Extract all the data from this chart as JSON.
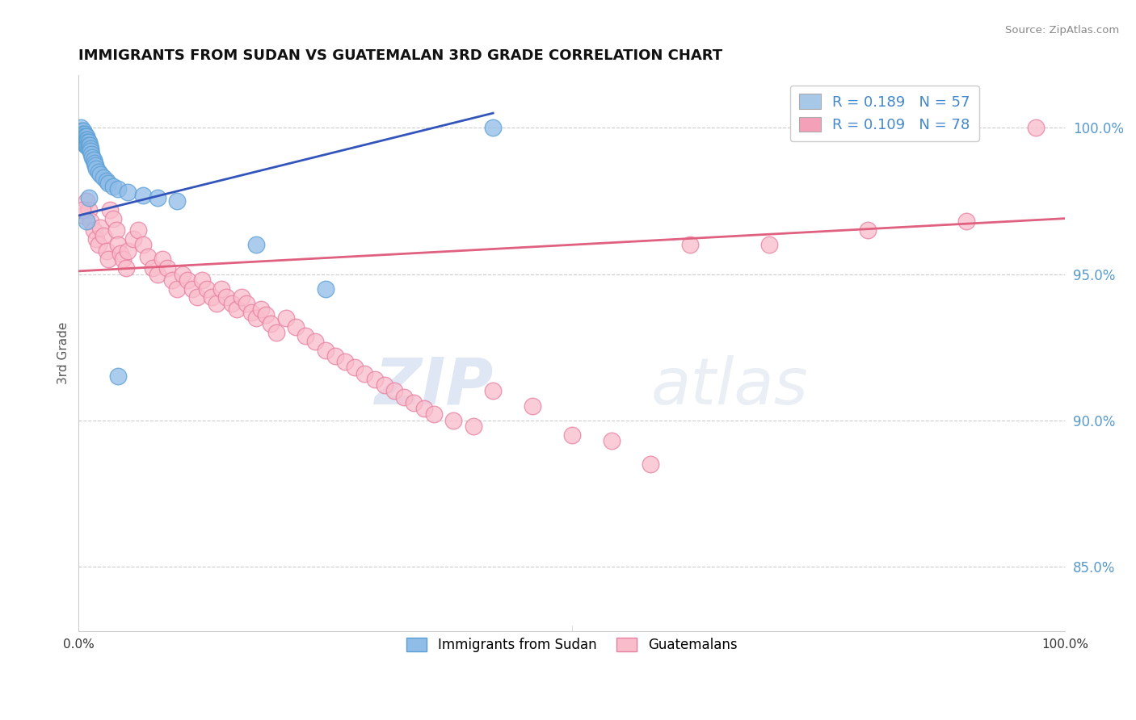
{
  "title": "IMMIGRANTS FROM SUDAN VS GUATEMALAN 3RD GRADE CORRELATION CHART",
  "source_text": "Source: ZipAtlas.com",
  "ylabel": "3rd Grade",
  "ytick_labels": [
    "85.0%",
    "90.0%",
    "95.0%",
    "100.0%"
  ],
  "ytick_values": [
    0.85,
    0.9,
    0.95,
    1.0
  ],
  "xlim": [
    0.0,
    1.0
  ],
  "ylim": [
    0.828,
    1.018
  ],
  "legend_r1": "R = 0.189   N = 57",
  "legend_r2": "R = 0.109   N = 78",
  "legend_color1": "#a8c8e8",
  "legend_color2": "#f4a0b8",
  "watermark_zip": "ZIP",
  "watermark_atlas": "atlas",
  "sudan_color": "#90bce8",
  "sudan_edge_color": "#5a9fd4",
  "guatemalan_color": "#f9bccb",
  "guatemalan_edge_color": "#e87fa0",
  "sudan_line_color": "#3355bb",
  "guatemalan_line_color": "#e06080",
  "sudan_line_x0": 0.0,
  "sudan_line_y0": 0.97,
  "sudan_line_x1": 0.42,
  "sudan_line_y1": 1.005,
  "guatemalan_line_x0": 0.0,
  "guatemalan_line_y0": 0.951,
  "guatemalan_line_x1": 1.0,
  "guatemalan_line_y1": 0.969,
  "sudan_scatter_x": [
    0.002,
    0.003,
    0.003,
    0.003,
    0.004,
    0.004,
    0.004,
    0.004,
    0.005,
    0.005,
    0.005,
    0.005,
    0.005,
    0.006,
    0.006,
    0.006,
    0.006,
    0.007,
    0.007,
    0.007,
    0.007,
    0.008,
    0.008,
    0.008,
    0.008,
    0.009,
    0.009,
    0.009,
    0.01,
    0.01,
    0.01,
    0.011,
    0.012,
    0.012,
    0.013,
    0.014,
    0.015,
    0.016,
    0.017,
    0.018,
    0.02,
    0.022,
    0.025,
    0.028,
    0.03,
    0.035,
    0.04,
    0.05,
    0.065,
    0.08,
    0.04,
    0.1,
    0.18,
    0.25,
    0.42,
    0.008,
    0.01
  ],
  "sudan_scatter_y": [
    1.0,
    0.999,
    0.998,
    0.997,
    0.998,
    0.997,
    0.996,
    0.995,
    0.999,
    0.998,
    0.997,
    0.996,
    0.995,
    0.998,
    0.997,
    0.996,
    0.995,
    0.997,
    0.996,
    0.995,
    0.994,
    0.997,
    0.996,
    0.995,
    0.994,
    0.996,
    0.995,
    0.994,
    0.995,
    0.994,
    0.993,
    0.994,
    0.993,
    0.992,
    0.991,
    0.99,
    0.989,
    0.988,
    0.987,
    0.986,
    0.985,
    0.984,
    0.983,
    0.982,
    0.981,
    0.98,
    0.979,
    0.978,
    0.977,
    0.976,
    0.915,
    0.975,
    0.96,
    0.945,
    1.0,
    0.968,
    0.976
  ],
  "guatemalan_scatter_x": [
    0.005,
    0.008,
    0.01,
    0.012,
    0.015,
    0.018,
    0.02,
    0.022,
    0.025,
    0.028,
    0.03,
    0.032,
    0.035,
    0.038,
    0.04,
    0.042,
    0.045,
    0.048,
    0.05,
    0.055,
    0.06,
    0.065,
    0.07,
    0.075,
    0.08,
    0.085,
    0.09,
    0.095,
    0.1,
    0.105,
    0.11,
    0.115,
    0.12,
    0.125,
    0.13,
    0.135,
    0.14,
    0.145,
    0.15,
    0.155,
    0.16,
    0.165,
    0.17,
    0.175,
    0.18,
    0.185,
    0.19,
    0.195,
    0.2,
    0.21,
    0.22,
    0.23,
    0.24,
    0.25,
    0.26,
    0.27,
    0.28,
    0.29,
    0.3,
    0.31,
    0.32,
    0.33,
    0.34,
    0.35,
    0.36,
    0.38,
    0.4,
    0.42,
    0.46,
    0.5,
    0.54,
    0.58,
    0.62,
    0.7,
    0.8,
    0.9,
    0.97,
    0.004
  ],
  "guatemalan_scatter_y": [
    0.97,
    0.975,
    0.972,
    0.968,
    0.965,
    0.962,
    0.96,
    0.966,
    0.963,
    0.958,
    0.955,
    0.972,
    0.969,
    0.965,
    0.96,
    0.957,
    0.955,
    0.952,
    0.958,
    0.962,
    0.965,
    0.96,
    0.956,
    0.952,
    0.95,
    0.955,
    0.952,
    0.948,
    0.945,
    0.95,
    0.948,
    0.945,
    0.942,
    0.948,
    0.945,
    0.942,
    0.94,
    0.945,
    0.942,
    0.94,
    0.938,
    0.942,
    0.94,
    0.937,
    0.935,
    0.938,
    0.936,
    0.933,
    0.93,
    0.935,
    0.932,
    0.929,
    0.927,
    0.924,
    0.922,
    0.92,
    0.918,
    0.916,
    0.914,
    0.912,
    0.91,
    0.908,
    0.906,
    0.904,
    0.902,
    0.9,
    0.898,
    0.91,
    0.905,
    0.895,
    0.893,
    0.885,
    0.96,
    0.96,
    0.965,
    0.968,
    1.0,
    0.972
  ]
}
